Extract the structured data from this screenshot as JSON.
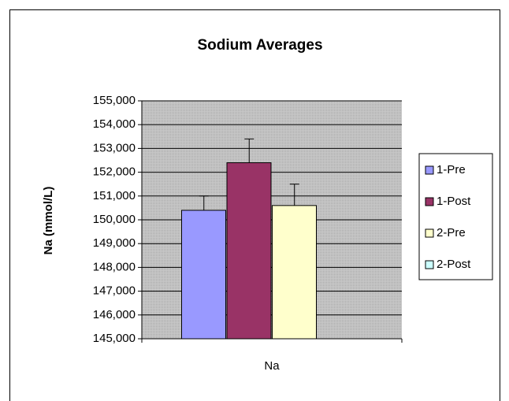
{
  "chart_data": {
    "type": "bar",
    "title": "Sodium Averages",
    "y_label": "Na (mmol/L)",
    "categories": [
      "Na"
    ],
    "series": [
      {
        "name": "1-Pre",
        "color": "#9999ff",
        "values": [
          150400
        ],
        "errors": [
          600
        ]
      },
      {
        "name": "1-Post",
        "color": "#993366",
        "values": [
          152400
        ],
        "errors": [
          1000
        ]
      },
      {
        "name": "2-Pre",
        "color": "#ffffcc",
        "values": [
          150600
        ],
        "errors": [
          900
        ]
      },
      {
        "name": "2-Post",
        "color": "#ccffff",
        "values": [
          null
        ],
        "errors": [
          null
        ]
      }
    ],
    "ylim": [
      145000,
      155000
    ],
    "yticks": [
      {
        "value": 145000,
        "label": "145,000"
      },
      {
        "value": 146000,
        "label": "146,000"
      },
      {
        "value": 147000,
        "label": "147,000"
      },
      {
        "value": 148000,
        "label": "148,000"
      },
      {
        "value": 149000,
        "label": "149,000"
      },
      {
        "value": 150000,
        "label": "150,000"
      },
      {
        "value": 151000,
        "label": "151,000"
      },
      {
        "value": 152000,
        "label": "152,000"
      },
      {
        "value": 153000,
        "label": "153,000"
      },
      {
        "value": 154000,
        "label": "154,000"
      },
      {
        "value": 155000,
        "label": "155,000"
      }
    ],
    "grid": true,
    "legend": "right"
  }
}
